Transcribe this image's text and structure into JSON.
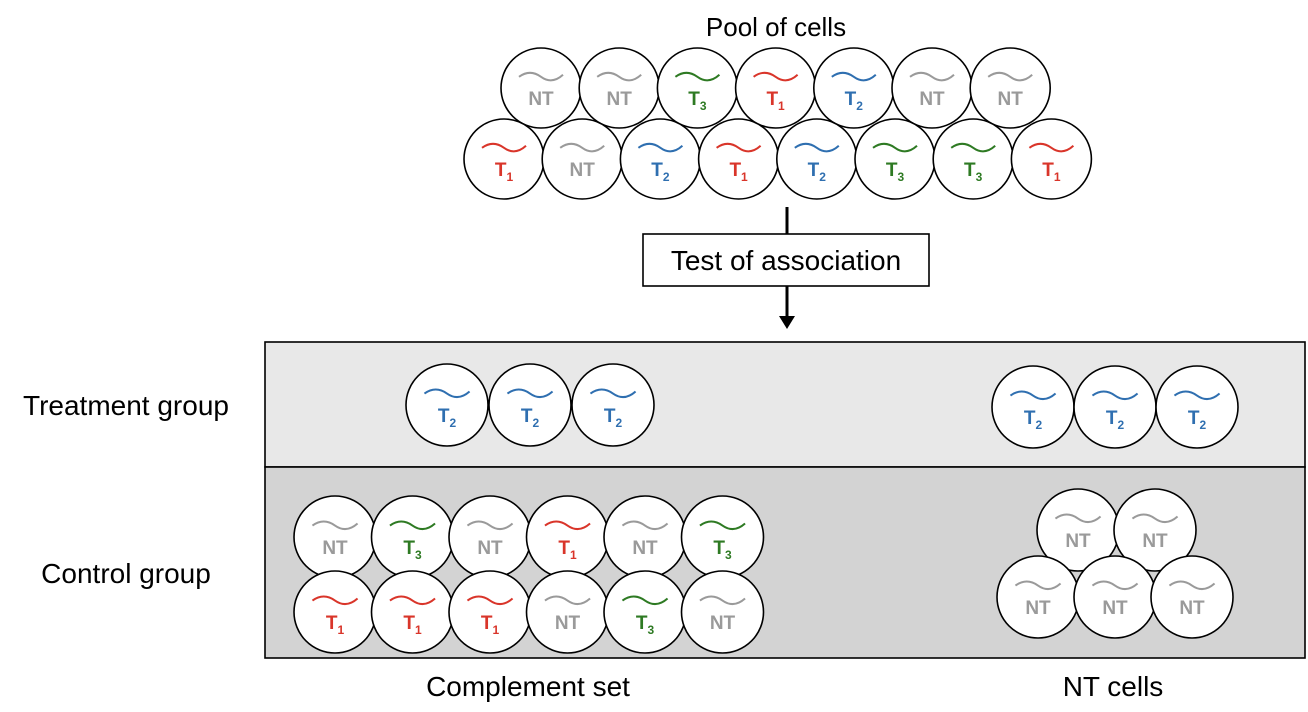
{
  "title": "Pool of cells",
  "test_box_label": "Test of association",
  "row_labels": {
    "treatment": "Treatment group",
    "control": "Control group"
  },
  "column_labels": {
    "complement": "Complement set",
    "nt": "NT cells"
  },
  "colors": {
    "NT": "#9a9a9a",
    "T1": "#d9352a",
    "T2": "#2f6fb0",
    "T3": "#2e7a23",
    "treatment_band": "#e8e8e8",
    "control_band": "#d3d3d3"
  },
  "pool": {
    "row1": [
      "NT",
      "NT",
      "T3",
      "T1",
      "T2",
      "NT",
      "NT"
    ],
    "row2": [
      "T1",
      "NT",
      "T2",
      "T1",
      "T2",
      "T3",
      "T3",
      "T1"
    ]
  },
  "treatment": {
    "complement": [
      "T2",
      "T2",
      "T2"
    ],
    "nt": [
      "T2",
      "T2",
      "T2"
    ]
  },
  "control": {
    "complement_row1": [
      "NT",
      "T3",
      "NT",
      "T1",
      "NT",
      "T3"
    ],
    "complement_row2": [
      "T1",
      "T1",
      "T1",
      "NT",
      "T3",
      "NT"
    ],
    "nt_row1": [
      "NT",
      "NT"
    ],
    "nt_row2": [
      "NT",
      "NT",
      "NT"
    ]
  },
  "cell_text": {
    "NT": {
      "main": "NT",
      "sub": ""
    },
    "T1": {
      "main": "T",
      "sub": "1"
    },
    "T2": {
      "main": "T",
      "sub": "2"
    },
    "T3": {
      "main": "T",
      "sub": "3"
    }
  }
}
